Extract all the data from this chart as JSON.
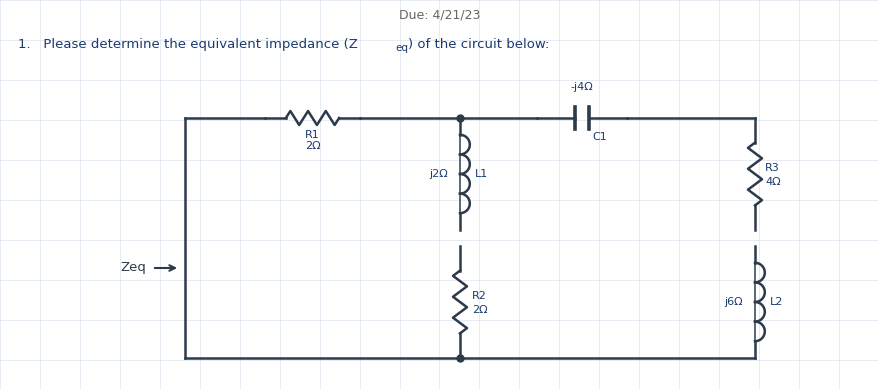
{
  "title": "Due: 4/21/23",
  "background_color": "#ffffff",
  "grid_color": "#dce4f0",
  "line_color": "#2d3a4a",
  "label_color": "#1a3a6e",
  "title_color": "#666666",
  "zeq_label": "Zeq",
  "r1_label1": "R1",
  "r1_label2": "2Ω",
  "r2_label1": "R2",
  "r2_label2": "2Ω",
  "r3_label1": "R3",
  "r3_label2": "4Ω",
  "l1_label": "j2Ω",
  "l1_name": "L1",
  "l2_label": "j6Ω",
  "l2_name": "L2",
  "c1_label": "-j4Ω",
  "c1_name": "C1",
  "subtitle_1": "1.   Please determine the equivalent impedance (Z",
  "subtitle_sub": "eq",
  "subtitle_2": ") of the circuit below:"
}
